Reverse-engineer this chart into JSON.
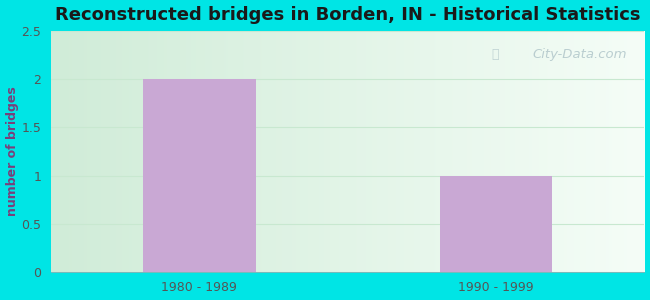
{
  "title": "Reconstructed bridges in Borden, IN - Historical Statistics",
  "categories": [
    "1980 - 1989",
    "1990 - 1999"
  ],
  "values": [
    2,
    1
  ],
  "bar_color": "#c9a8d4",
  "ylabel": "number of bridges",
  "ylim": [
    0,
    2.5
  ],
  "yticks": [
    0,
    0.5,
    1,
    1.5,
    2,
    2.5
  ],
  "title_fontsize": 13,
  "title_color": "#1a1a1a",
  "ylabel_color": "#7a3f7a",
  "tick_color": "#555555",
  "xlabel_color": "#555555",
  "grid_color": "#d8eede",
  "outer_bg": "#00e5e5",
  "plot_bg_top_left": "#d0ecd8",
  "plot_bg_right": "#eaf5f0",
  "watermark": "City-Data.com"
}
